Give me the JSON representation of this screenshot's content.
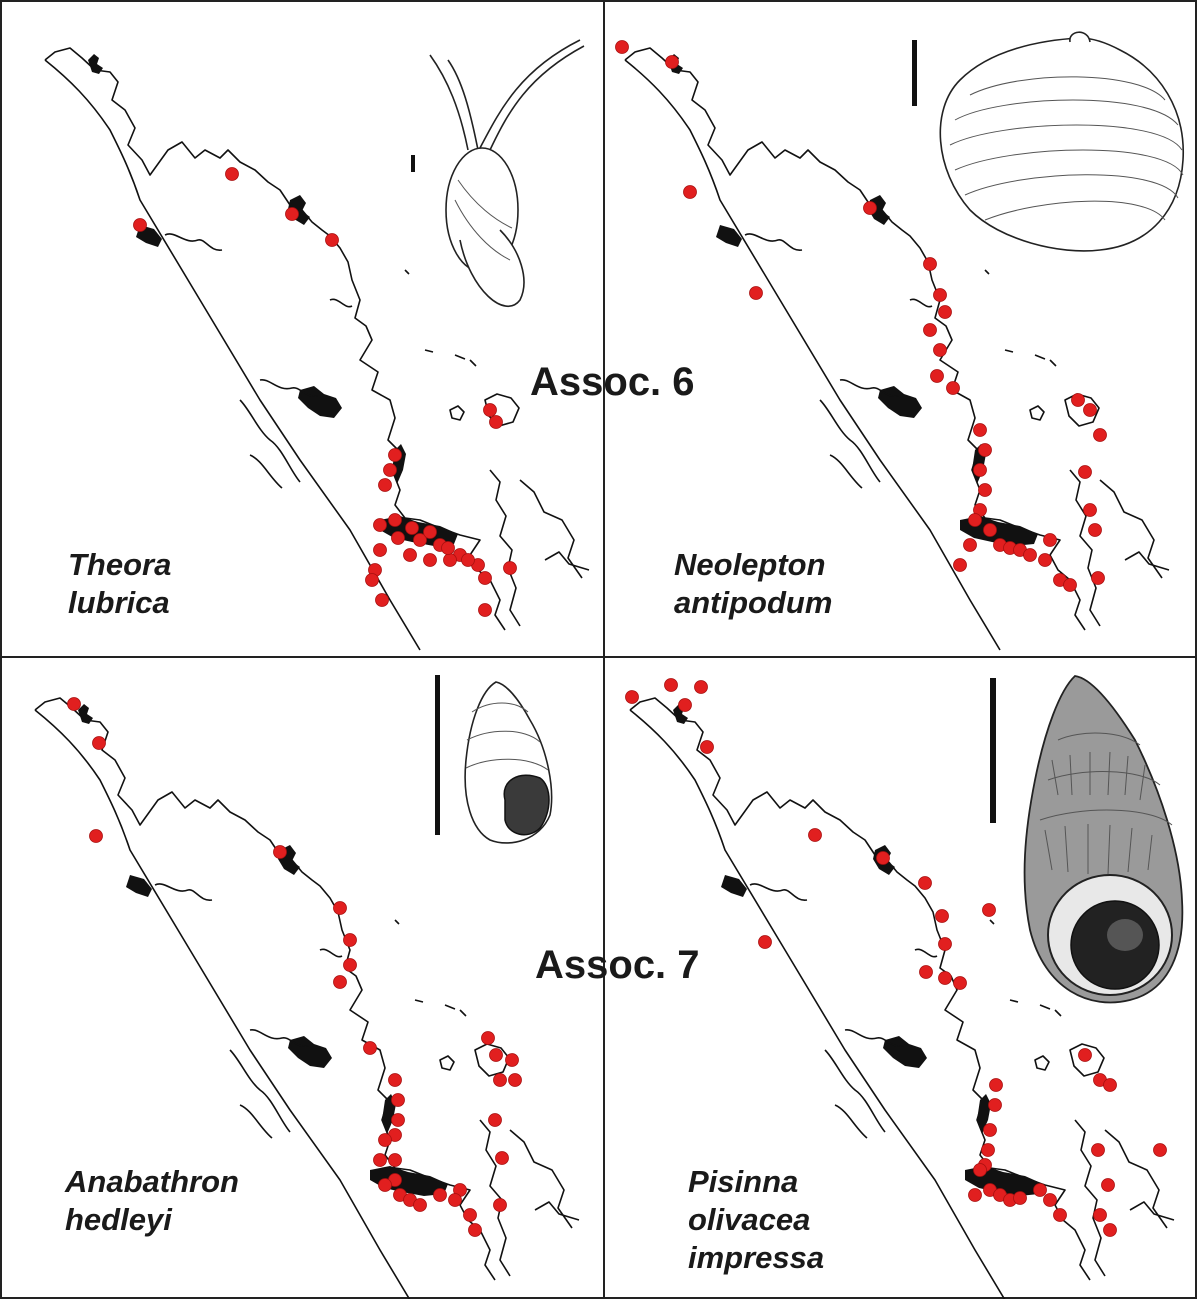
{
  "panels": [
    {
      "id": "theora",
      "species_lines": [
        "Theora",
        "lubrica"
      ],
      "occurrences": [
        [
          232,
          174
        ],
        [
          292,
          214
        ],
        [
          332,
          240
        ],
        [
          140,
          225
        ],
        [
          395,
          455
        ],
        [
          390,
          470
        ],
        [
          385,
          485
        ],
        [
          380,
          525
        ],
        [
          398,
          538
        ],
        [
          420,
          540
        ],
        [
          440,
          545
        ],
        [
          460,
          555
        ],
        [
          478,
          565
        ],
        [
          380,
          550
        ],
        [
          375,
          570
        ],
        [
          372,
          580
        ],
        [
          410,
          555
        ],
        [
          430,
          560
        ],
        [
          450,
          560
        ],
        [
          468,
          560
        ],
        [
          485,
          578
        ],
        [
          510,
          568
        ],
        [
          382,
          600
        ],
        [
          485,
          610
        ],
        [
          490,
          410
        ],
        [
          496,
          422
        ],
        [
          395,
          520
        ],
        [
          412,
          528
        ],
        [
          430,
          532
        ],
        [
          448,
          548
        ]
      ]
    },
    {
      "id": "neolepton",
      "species_lines": [
        "Neolepton",
        "antipodum"
      ],
      "occurrences": [
        [
          622,
          47
        ],
        [
          672,
          62
        ],
        [
          690,
          192
        ],
        [
          756,
          293
        ],
        [
          870,
          208
        ],
        [
          930,
          264
        ],
        [
          940,
          295
        ],
        [
          945,
          312
        ],
        [
          930,
          330
        ],
        [
          940,
          350
        ],
        [
          937,
          376
        ],
        [
          953,
          388
        ],
        [
          980,
          430
        ],
        [
          985,
          450
        ],
        [
          980,
          470
        ],
        [
          985,
          490
        ],
        [
          980,
          510
        ],
        [
          990,
          530
        ],
        [
          1000,
          545
        ],
        [
          1010,
          548
        ],
        [
          1020,
          550
        ],
        [
          1030,
          555
        ],
        [
          1045,
          560
        ],
        [
          1050,
          540
        ],
        [
          1060,
          580
        ],
        [
          1070,
          585
        ],
        [
          1078,
          400
        ],
        [
          1090,
          410
        ],
        [
          1100,
          435
        ],
        [
          1085,
          472
        ],
        [
          1090,
          510
        ],
        [
          1095,
          530
        ],
        [
          1098,
          578
        ],
        [
          960,
          565
        ],
        [
          970,
          545
        ],
        [
          975,
          520
        ]
      ]
    },
    {
      "id": "anabathron",
      "species_lines": [
        "Anabathron",
        "hedleyi"
      ],
      "occurrences": [
        [
          74,
          704
        ],
        [
          99,
          743
        ],
        [
          96,
          836
        ],
        [
          280,
          852
        ],
        [
          340,
          908
        ],
        [
          350,
          940
        ],
        [
          350,
          965
        ],
        [
          340,
          982
        ],
        [
          370,
          1048
        ],
        [
          395,
          1080
        ],
        [
          398,
          1100
        ],
        [
          398,
          1120
        ],
        [
          395,
          1135
        ],
        [
          395,
          1160
        ],
        [
          395,
          1180
        ],
        [
          400,
          1195
        ],
        [
          410,
          1200
        ],
        [
          420,
          1205
        ],
        [
          440,
          1195
        ],
        [
          460,
          1190
        ],
        [
          455,
          1200
        ],
        [
          470,
          1215
        ],
        [
          475,
          1230
        ],
        [
          488,
          1038
        ],
        [
          496,
          1055
        ],
        [
          512,
          1060
        ],
        [
          500,
          1080
        ],
        [
          515,
          1080
        ],
        [
          495,
          1120
        ],
        [
          502,
          1158
        ],
        [
          500,
          1205
        ],
        [
          385,
          1185
        ],
        [
          380,
          1160
        ],
        [
          385,
          1140
        ]
      ]
    },
    {
      "id": "pisinna",
      "species_lines": [
        "Pisinna",
        "olivacea",
        "impressa"
      ],
      "occurrences": [
        [
          632,
          697
        ],
        [
          671,
          685
        ],
        [
          701,
          687
        ],
        [
          685,
          705
        ],
        [
          707,
          747
        ],
        [
          815,
          835
        ],
        [
          883,
          858
        ],
        [
          925,
          883
        ],
        [
          942,
          916
        ],
        [
          989,
          910
        ],
        [
          945,
          944
        ],
        [
          765,
          942
        ],
        [
          926,
          972
        ],
        [
          945,
          978
        ],
        [
          960,
          983
        ],
        [
          996,
          1085
        ],
        [
          995,
          1105
        ],
        [
          990,
          1130
        ],
        [
          988,
          1150
        ],
        [
          985,
          1165
        ],
        [
          990,
          1190
        ],
        [
          1000,
          1195
        ],
        [
          1010,
          1200
        ],
        [
          1020,
          1198
        ],
        [
          1040,
          1190
        ],
        [
          1050,
          1200
        ],
        [
          1060,
          1215
        ],
        [
          1085,
          1055
        ],
        [
          1100,
          1080
        ],
        [
          1110,
          1085
        ],
        [
          1098,
          1150
        ],
        [
          1108,
          1185
        ],
        [
          1100,
          1215
        ],
        [
          1110,
          1230
        ],
        [
          1160,
          1150
        ],
        [
          975,
          1195
        ],
        [
          980,
          1170
        ]
      ]
    }
  ],
  "associations": [
    {
      "label": "Assoc. 6"
    },
    {
      "label": "Assoc. 7"
    }
  ],
  "colors": {
    "occurrence": "#e11f1f",
    "coast": "#111111",
    "divider": "#222222"
  },
  "illustrations": [
    "theora-shell-drawing",
    "neolepton-shell-drawing",
    "anabathron-shell-drawing",
    "pisinna-shell-drawing"
  ]
}
